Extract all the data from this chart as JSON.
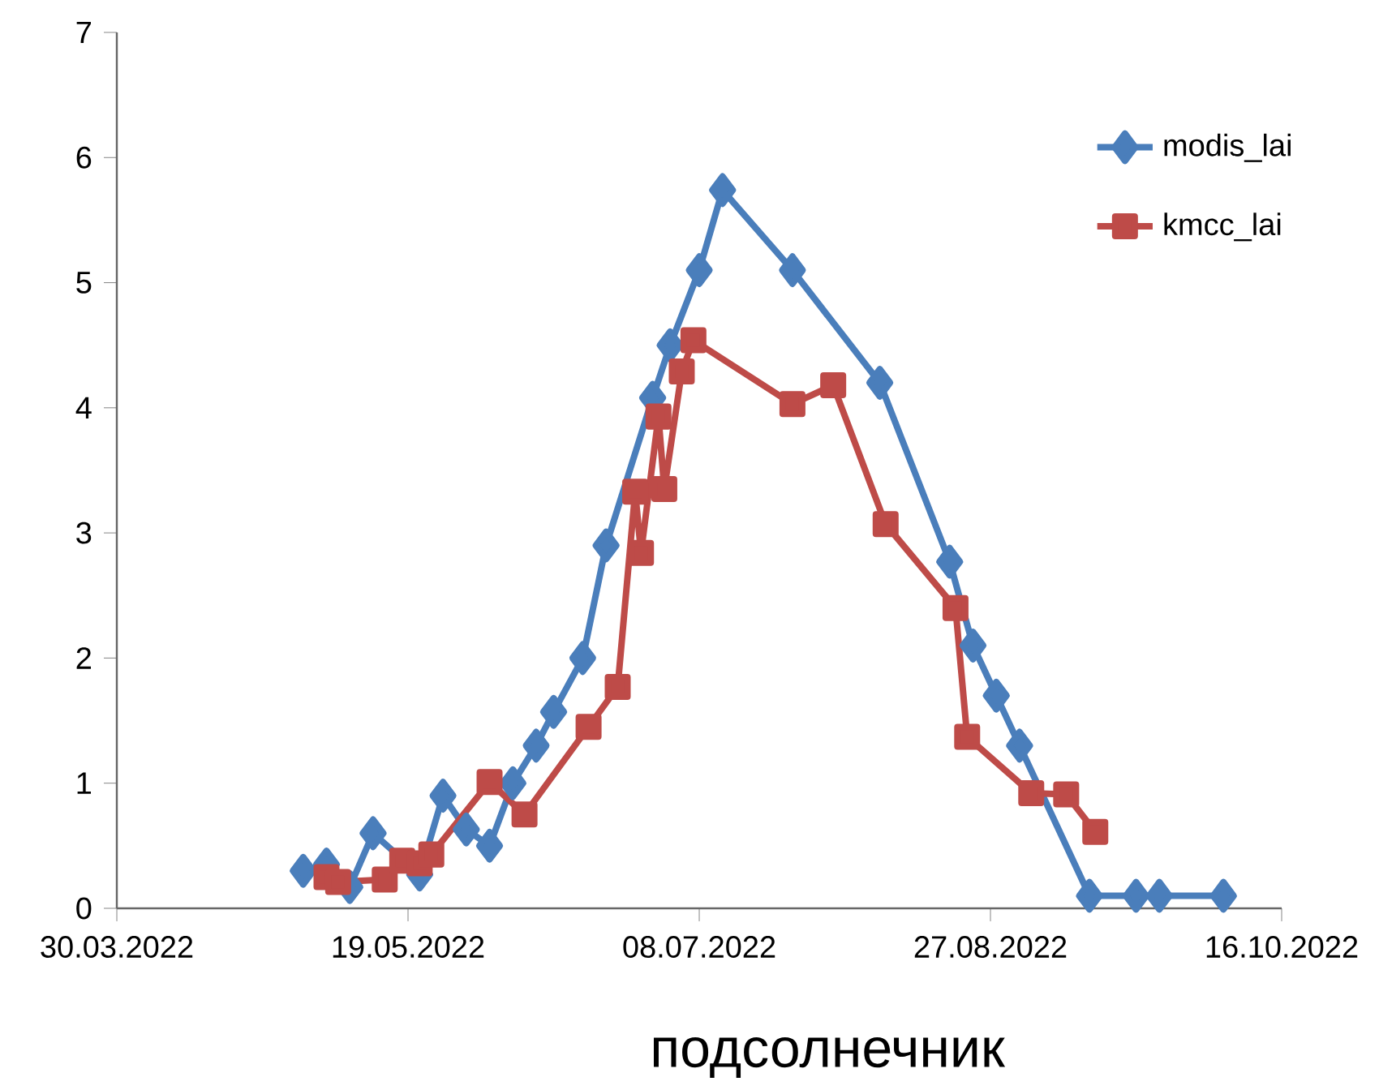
{
  "chart_data": {
    "type": "line",
    "title": "подсолнечник",
    "xlim": [
      "2022-03-30",
      "2022-10-16"
    ],
    "xticks": [
      {
        "value": "2022-03-30",
        "label": "30.03.2022"
      },
      {
        "value": "2022-05-19",
        "label": "19.05.2022"
      },
      {
        "value": "2022-07-08",
        "label": "08.07.2022"
      },
      {
        "value": "2022-08-27",
        "label": "27.08.2022"
      },
      {
        "value": "2022-10-16",
        "label": "16.10.2022"
      }
    ],
    "ylim": [
      0,
      7
    ],
    "yticks": [
      0,
      1,
      2,
      3,
      4,
      5,
      6,
      7
    ],
    "grid": false,
    "legend": "top right",
    "line_style": "solid",
    "series": [
      {
        "name": "modis_lai",
        "color": "#4a7ebb",
        "marker": "diamond",
        "x": [
          "2022-05-01",
          "2022-05-05",
          "2022-05-09",
          "2022-05-13",
          "2022-05-21",
          "2022-05-25",
          "2022-05-29",
          "2022-06-02",
          "2022-06-06",
          "2022-06-10",
          "2022-06-13",
          "2022-06-18",
          "2022-06-22",
          "2022-06-30",
          "2022-07-03",
          "2022-07-08",
          "2022-07-12",
          "2022-07-24",
          "2022-08-08",
          "2022-08-20",
          "2022-08-24",
          "2022-08-28",
          "2022-09-01",
          "2022-09-09",
          "2022-09-13",
          "2022-09-21",
          "2022-09-25",
          "2022-10-06"
        ],
        "values": [
          0.3,
          0.35,
          0.17,
          0.6,
          0.27,
          0.9,
          0.63,
          0.5,
          1.0,
          1.3,
          1.57,
          2.0,
          2.9,
          4.08,
          4.5,
          5.1,
          5.74,
          5.1,
          4.2,
          2.77,
          2.1,
          1.7,
          1.3,
          null,
          0.1,
          0.1,
          0.1,
          0.1
        ]
      },
      {
        "name": "kmcc_lai",
        "color": "#be4b48",
        "marker": "square",
        "x": [
          "2022-05-05",
          "2022-05-07",
          "2022-05-15",
          "2022-05-18",
          "2022-05-21",
          "2022-05-23",
          "2022-06-02",
          "2022-06-08",
          "2022-06-19",
          "2022-06-24",
          "2022-06-27",
          "2022-06-28",
          "2022-07-01",
          "2022-07-02",
          "2022-07-05",
          "2022-07-07",
          "2022-07-24",
          "2022-07-31",
          "2022-08-09",
          "2022-08-21",
          "2022-08-23",
          "2022-09-03",
          "2022-09-09",
          "2022-09-14"
        ],
        "values": [
          0.25,
          0.21,
          0.23,
          0.38,
          0.36,
          0.43,
          1.01,
          0.75,
          1.45,
          1.77,
          3.33,
          2.84,
          3.93,
          3.35,
          4.29,
          4.54,
          4.03,
          4.18,
          3.07,
          2.4,
          1.37,
          0.92,
          0.91,
          0.61
        ]
      }
    ]
  }
}
